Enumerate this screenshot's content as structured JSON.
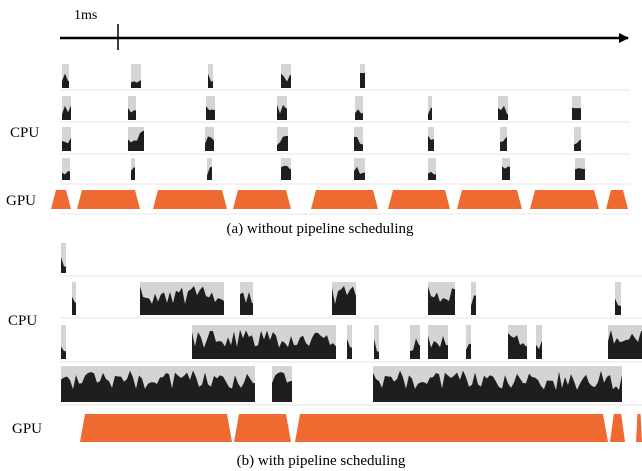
{
  "timescale": {
    "label": "1ms"
  },
  "colors": {
    "busy": "#1e1e1e",
    "idle": "#d4d4d4",
    "gpu": "#ee6a30",
    "axis": "#000000",
    "separator": "#e4e4e4"
  },
  "panels": [
    {
      "caption": "(a) without pipeline scheduling",
      "cpu_label": "CPU",
      "gpu_label": "GPU",
      "cpu_rows": [
        [
          [
            62,
            69
          ],
          [
            131,
            141
          ],
          [
            208,
            213
          ],
          [
            281,
            291
          ],
          [
            360,
            365
          ]
        ],
        [
          [
            62,
            71
          ],
          [
            128,
            136
          ],
          [
            206,
            215
          ],
          [
            277,
            287
          ],
          [
            355,
            363
          ],
          [
            428,
            432
          ],
          [
            498,
            508
          ],
          [
            572,
            581
          ]
        ],
        [
          [
            62,
            71
          ],
          [
            128,
            144
          ],
          [
            205,
            214
          ],
          [
            277,
            288
          ],
          [
            354,
            363
          ],
          [
            428,
            434
          ],
          [
            500,
            507
          ],
          [
            574,
            581
          ]
        ],
        [
          [
            62,
            70
          ],
          [
            131,
            135
          ],
          [
            207,
            212
          ],
          [
            281,
            291
          ],
          [
            354,
            365
          ],
          [
            428,
            436
          ],
          [
            502,
            510
          ],
          [
            575,
            585
          ]
        ]
      ],
      "gpu_segments": [
        [
          51,
          71
        ],
        [
          77,
          140
        ],
        [
          153,
          227
        ],
        [
          233,
          291
        ],
        [
          311,
          378
        ],
        [
          388,
          450
        ],
        [
          457,
          522
        ],
        [
          530,
          599
        ],
        [
          606,
          628
        ]
      ]
    },
    {
      "caption": "(b) with pipeline scheduling",
      "cpu_label": "CPU",
      "gpu_label": "GPU",
      "cpu_rows": [
        [
          [
            61,
            66
          ]
        ],
        [
          [
            72,
            76
          ],
          [
            140,
            224
          ],
          [
            240,
            253
          ],
          [
            332,
            356
          ],
          [
            428,
            455
          ],
          [
            471,
            476
          ],
          [
            615,
            621
          ]
        ],
        [
          [
            61,
            66
          ],
          [
            192,
            336
          ],
          [
            347,
            352
          ],
          [
            374,
            379
          ],
          [
            410,
            420
          ],
          [
            428,
            448
          ],
          [
            466,
            471
          ],
          [
            508,
            527
          ],
          [
            536,
            542
          ],
          [
            608,
            642
          ]
        ],
        [
          [
            61,
            255
          ],
          [
            272,
            292
          ],
          [
            373,
            622
          ]
        ]
      ],
      "gpu_segments": [
        [
          80,
          232
        ],
        [
          234,
          291
        ],
        [
          295,
          608
        ],
        [
          610,
          625
        ],
        [
          636,
          642
        ]
      ]
    }
  ]
}
